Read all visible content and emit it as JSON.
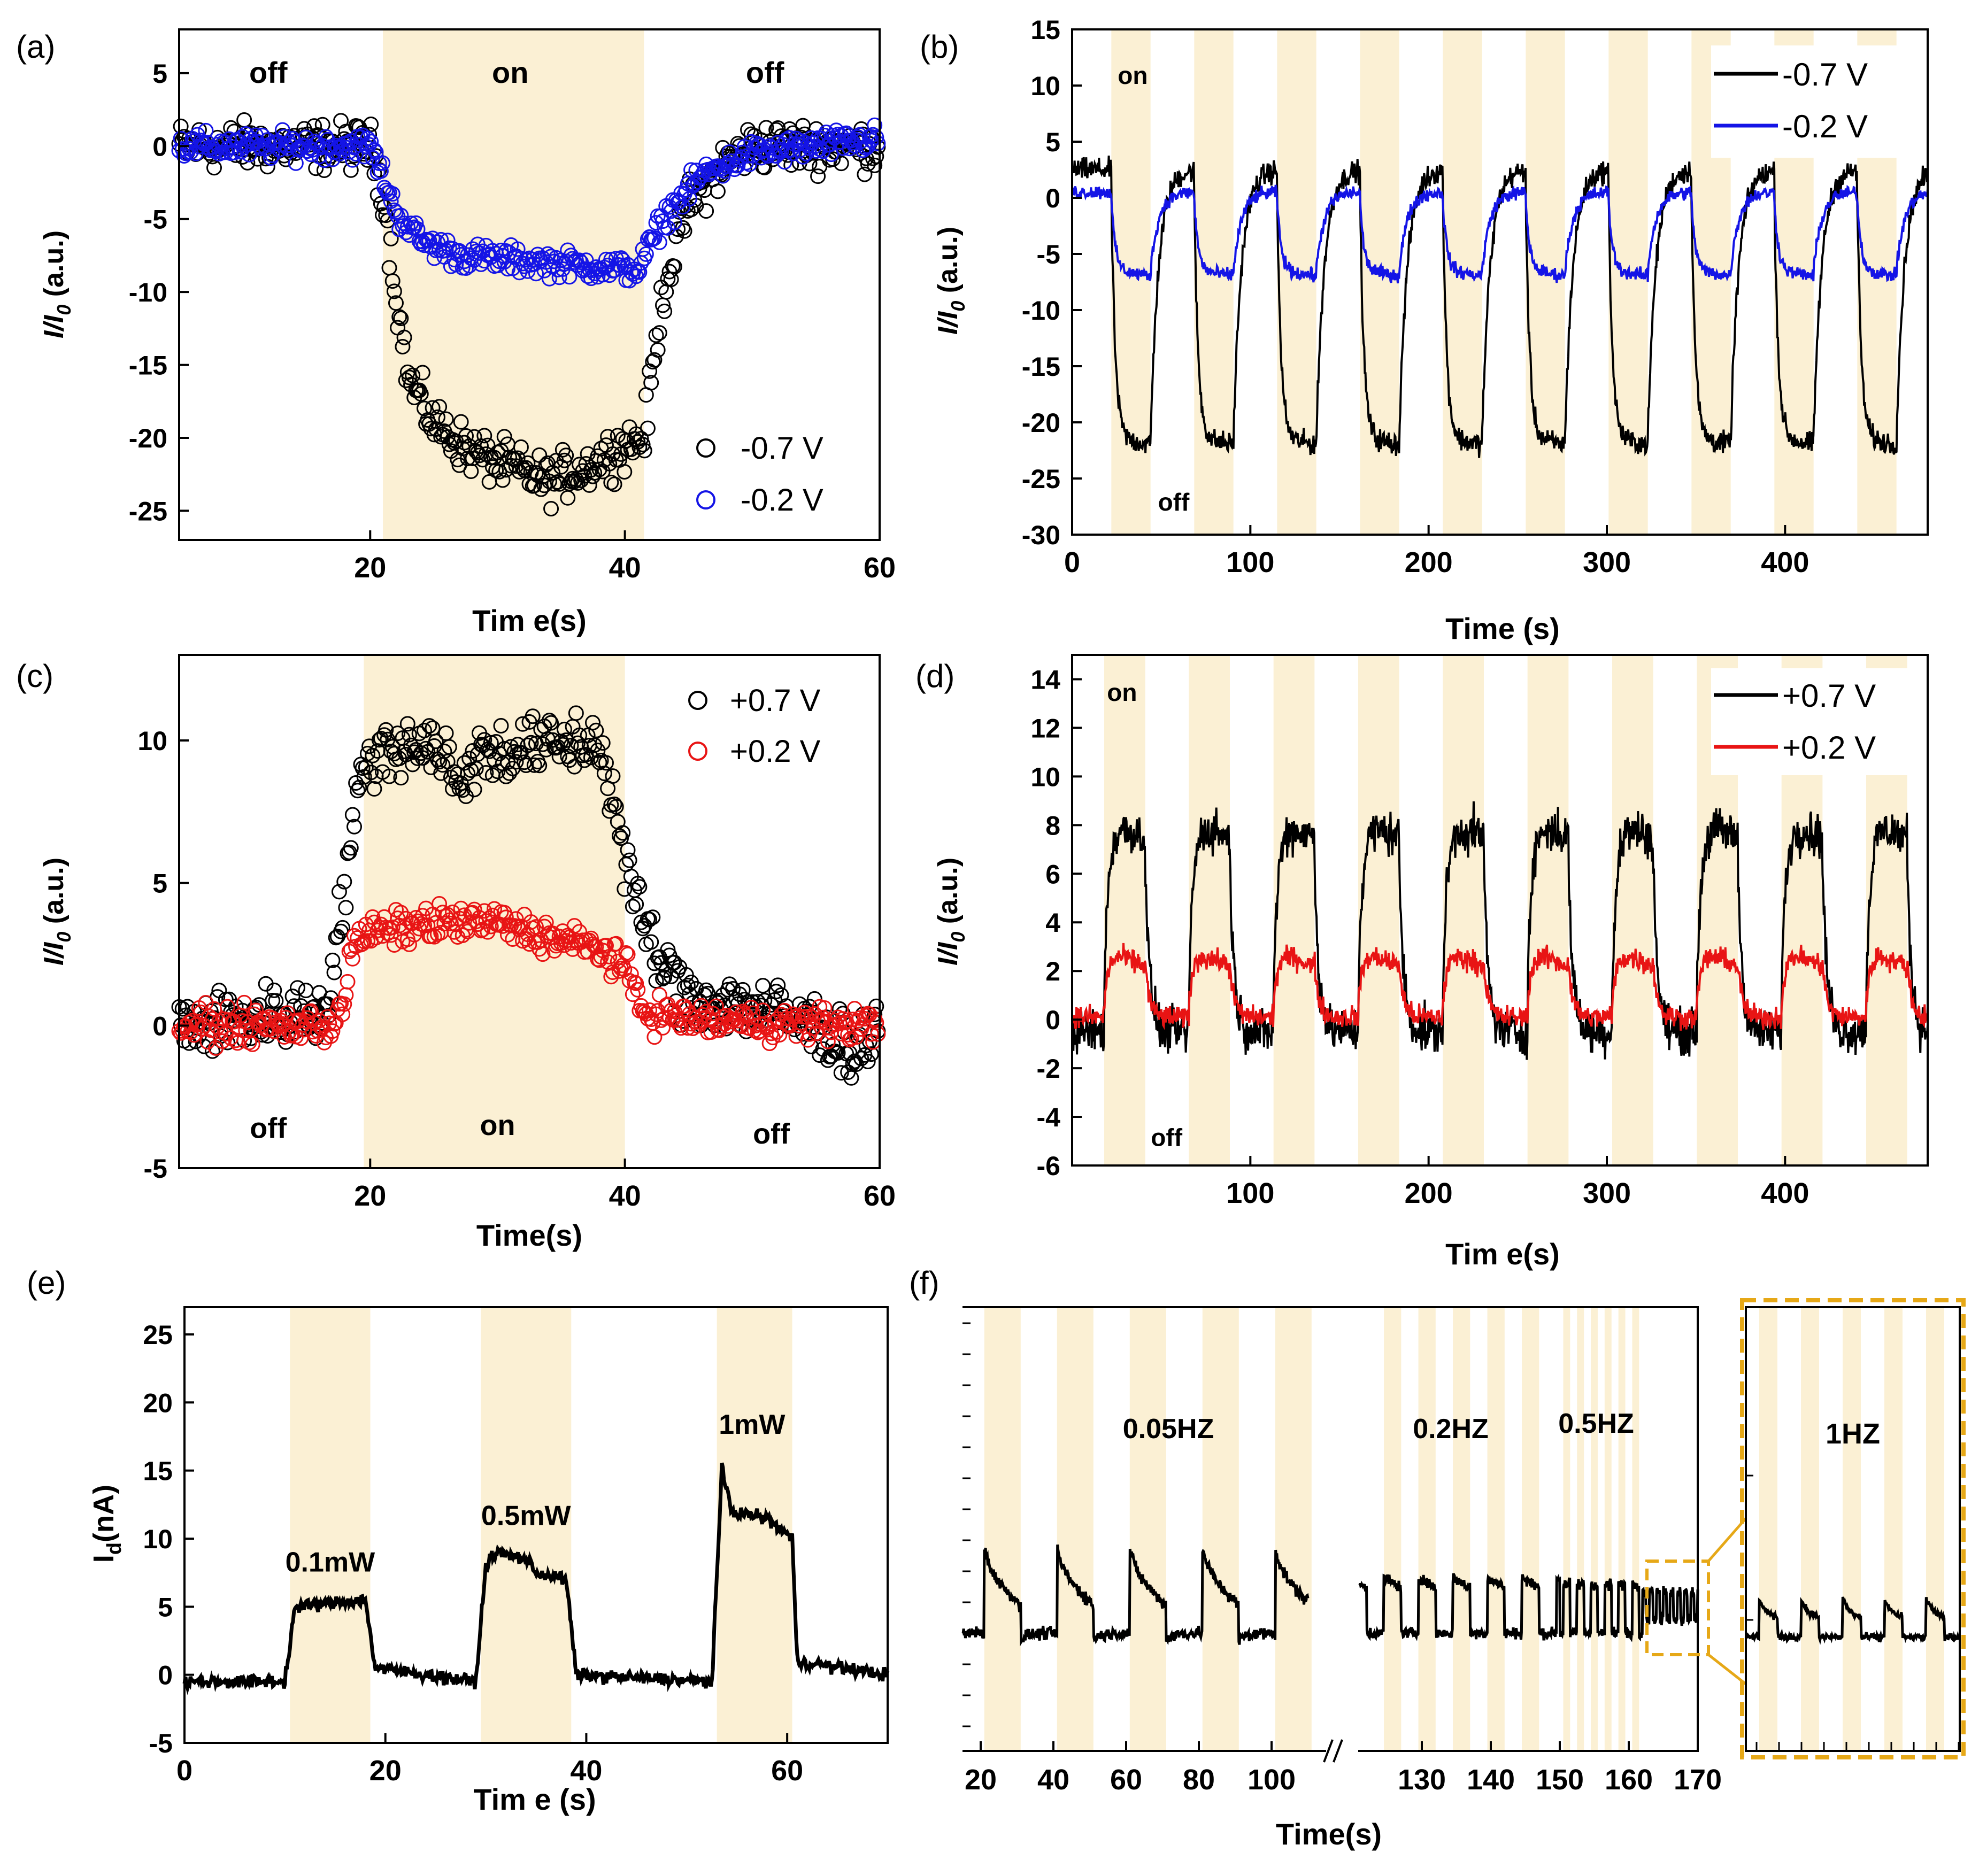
{
  "colors": {
    "shade": "#fbf0d4",
    "black": "#000000",
    "blue": "#1414e6",
    "red": "#e81414",
    "zoom": "#e6a817"
  },
  "chart_data": [
    {
      "id": "a",
      "panel_label": "(a)",
      "type": "scatter",
      "xlabel": "Tim e(s)",
      "ylabel_main": "I/I",
      "ylabel_sub": "0",
      "ylabel_unit": " (a.u.)",
      "xlim": [
        5,
        60
      ],
      "ylim": [
        -27,
        8
      ],
      "xticks": [
        20,
        40,
        60
      ],
      "yticks": [
        5,
        0,
        -5,
        -10,
        -15,
        -20,
        -25
      ],
      "on_intervals": [
        [
          21,
          41.5
        ]
      ],
      "annotations": [
        {
          "text": "off",
          "x": 12,
          "y": 5
        },
        {
          "text": "on",
          "x": 31,
          "y": 5
        },
        {
          "text": "off",
          "x": 51,
          "y": 5
        }
      ],
      "legend": [
        "-0.7 V",
        "-0.2 V"
      ],
      "series": [
        {
          "name": "-0.7 V",
          "color": "black",
          "pts": [
            [
              5,
              0
            ],
            [
              20,
              0
            ],
            [
              21,
              -3
            ],
            [
              22,
              -10
            ],
            [
              23,
              -16
            ],
            [
              25,
              -19
            ],
            [
              28,
              -21
            ],
            [
              31,
              -22
            ],
            [
              34,
              -23
            ],
            [
              37,
              -22
            ],
            [
              40,
              -20.5
            ],
            [
              41.5,
              -20
            ],
            [
              43,
              -10
            ],
            [
              45,
              -4
            ],
            [
              48,
              -1
            ],
            [
              50,
              0
            ],
            [
              60,
              0
            ]
          ],
          "noise": 1.6,
          "marker": "o"
        },
        {
          "name": "-0.2 V",
          "color": "blue",
          "pts": [
            [
              5,
              0
            ],
            [
              20,
              0
            ],
            [
              21,
              -2
            ],
            [
              22,
              -4.5
            ],
            [
              24,
              -6.5
            ],
            [
              27,
              -7.5
            ],
            [
              41,
              -8.5
            ],
            [
              43,
              -5
            ],
            [
              46,
              -2
            ],
            [
              50,
              -0.5
            ],
            [
              60,
              0.5
            ]
          ],
          "noise": 0.9,
          "marker": "o"
        }
      ]
    },
    {
      "id": "b",
      "panel_label": "(b)",
      "type": "line",
      "xlabel": "Time (s)",
      "ylabel_main": "I/I",
      "ylabel_sub": "0",
      "ylabel_unit": " (a.u.)",
      "xlim": [
        0,
        480
      ],
      "ylim": [
        -30,
        15
      ],
      "xticks": [
        0,
        100,
        200,
        300,
        400
      ],
      "yticks": [
        15,
        10,
        5,
        0,
        -5,
        -10,
        -15,
        -20,
        -25,
        -30
      ],
      "period": 46.5,
      "phase_on": 22,
      "on_len": 22,
      "annotations": [
        {
          "text": "on",
          "x": 34,
          "y": 11
        },
        {
          "text": "off",
          "x": 57,
          "y": -27
        }
      ],
      "legend": [
        "-0.7 V",
        "-0.2 V"
      ],
      "series": [
        {
          "name": "-0.7 V",
          "color": "black",
          "high": 2.5,
          "low": -21.5,
          "noise": 1.0
        },
        {
          "name": "-0.2 V",
          "color": "blue",
          "high": 0.5,
          "low": -6.5,
          "noise": 0.6
        }
      ]
    },
    {
      "id": "c",
      "panel_label": "(c)",
      "type": "scatter",
      "xlabel": "Time(s)",
      "ylabel_main": "I/I",
      "ylabel_sub": "0",
      "ylabel_unit": " (a.u.)",
      "xlim": [
        5,
        60
      ],
      "ylim": [
        -5,
        13
      ],
      "xticks": [
        20,
        40,
        60
      ],
      "yticks": [
        10,
        5,
        0,
        -5
      ],
      "on_intervals": [
        [
          19.5,
          40
        ]
      ],
      "annotations": [
        {
          "text": "off",
          "x": 12,
          "y": -3.6
        },
        {
          "text": "on",
          "x": 30,
          "y": -3.5
        },
        {
          "text": "off",
          "x": 51.5,
          "y": -3.8
        }
      ],
      "legend": [
        "+0.7 V",
        "+0.2 V"
      ],
      "series": [
        {
          "name": "+0.7 V",
          "color": "black",
          "pts": [
            [
              5,
              0
            ],
            [
              16,
              0.5
            ],
            [
              17,
              1.5
            ],
            [
              18,
              5
            ],
            [
              19,
              8
            ],
            [
              20,
              9.5
            ],
            [
              24,
              10
            ],
            [
              26,
              9.5
            ],
            [
              27,
              8
            ],
            [
              28,
              9.5
            ],
            [
              38,
              10
            ],
            [
              39,
              8
            ],
            [
              41,
              4
            ],
            [
              43,
              2
            ],
            [
              45,
              1
            ],
            [
              50,
              0.7
            ],
            [
              55,
              0
            ],
            [
              58,
              -1
            ],
            [
              60,
              0
            ]
          ],
          "noise": 1.1,
          "marker": "o"
        },
        {
          "name": "+0.2 V",
          "color": "red",
          "pts": [
            [
              5,
              0
            ],
            [
              17,
              0
            ],
            [
              18,
              1
            ],
            [
              18.5,
              2.5
            ],
            [
              19.5,
              3.2
            ],
            [
              25,
              3.6
            ],
            [
              30,
              3.6
            ],
            [
              35,
              3
            ],
            [
              38,
              2.7
            ],
            [
              40,
              2
            ],
            [
              41.5,
              0.5
            ],
            [
              45,
              0.2
            ],
            [
              60,
              0
            ]
          ],
          "noise": 0.6,
          "marker": "o"
        }
      ]
    },
    {
      "id": "d",
      "panel_label": "(d)",
      "type": "line",
      "xlabel": "Tim e(s)",
      "ylabel_main": "I/I",
      "ylabel_sub": "0",
      "ylabel_unit": " (a.u.)",
      "xlim": [
        0,
        480
      ],
      "ylim": [
        -6,
        15
      ],
      "xticks": [
        100,
        200,
        300,
        400
      ],
      "yticks": [
        14,
        12,
        10,
        8,
        6,
        4,
        2,
        0,
        -2,
        -4,
        -6
      ],
      "period": 47.5,
      "phase_on": 18,
      "on_len": 23,
      "annotations": [
        {
          "text": "on",
          "x": 28,
          "y": 13.5
        },
        {
          "text": "off",
          "x": 53,
          "y": -4.8
        }
      ],
      "legend": [
        "+0.7 V",
        "+0.2 V"
      ],
      "series": [
        {
          "name": "+0.7 V",
          "color": "black",
          "high": 8.2,
          "low": -0.5,
          "noise": 0.9
        },
        {
          "name": "+0.2 V",
          "color": "red",
          "high": 2.9,
          "low": 0.1,
          "noise": 0.45
        }
      ]
    },
    {
      "id": "e",
      "panel_label": "(e)",
      "type": "line",
      "xlabel": "Tim e (s)",
      "ylabel_main": "I",
      "ylabel_sub": "d",
      "ylabel_unit": "(nA)",
      "xlim": [
        0,
        70
      ],
      "ylim": [
        -5,
        27
      ],
      "xticks": [
        0,
        20,
        40,
        60
      ],
      "yticks": [
        25,
        20,
        15,
        10,
        5,
        0,
        -5
      ],
      "on_intervals": [
        [
          10.5,
          18.5
        ],
        [
          29.5,
          38.5
        ],
        [
          53,
          60.5
        ]
      ],
      "annotations": [
        {
          "text": "0.1mW",
          "x": 14.5,
          "y": 8.3
        },
        {
          "text": "0.5mW",
          "x": 34,
          "y": 11.7
        },
        {
          "text": "1mW",
          "x": 56.5,
          "y": 18.4
        }
      ],
      "series": [
        {
          "name": "Id",
          "color": "black",
          "pts": [
            [
              0,
              -0.5
            ],
            [
              10,
              -0.5
            ],
            [
              11,
              5
            ],
            [
              18,
              5.5
            ],
            [
              19,
              0.5
            ],
            [
              29,
              -0.5
            ],
            [
              30,
              8
            ],
            [
              31,
              9
            ],
            [
              34,
              8.5
            ],
            [
              35,
              7.5
            ],
            [
              38,
              7
            ],
            [
              39,
              0
            ],
            [
              52.5,
              -0.5
            ],
            [
              53.5,
              15
            ],
            [
              54.5,
              12
            ],
            [
              58,
              11.5
            ],
            [
              60.5,
              10
            ],
            [
              61,
              1
            ],
            [
              70,
              0
            ]
          ],
          "noise": 0.45
        }
      ]
    },
    {
      "id": "f",
      "panel_label": "(f)",
      "type": "line",
      "xlabel": "Time(s)",
      "xticks": [
        20,
        40,
        60,
        80,
        100,
        130,
        140,
        150,
        160,
        170
      ],
      "annotations": [
        {
          "text": "0.05HZ"
        },
        {
          "text": "0.2HZ"
        },
        {
          "text": "0.5HZ"
        }
      ],
      "inset_label": "1HZ",
      "segments": [
        {
          "name": "0.05HZ",
          "xlim": [
            15,
            115
          ],
          "on_start": 21,
          "period": 20,
          "on_len": 10,
          "count": 5
        },
        {
          "name": "0.2HZ / 0.5HZ / 1HZ",
          "xlim": [
            120,
            170
          ]
        }
      ]
    }
  ]
}
